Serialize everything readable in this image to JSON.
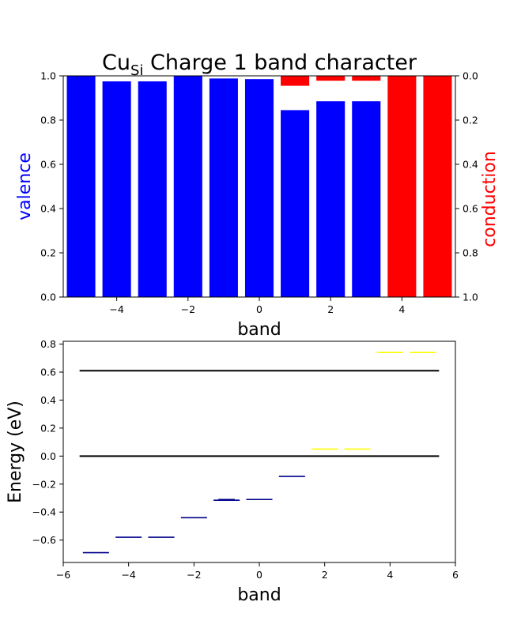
{
  "chart_data": [
    {
      "type": "bar",
      "title": "Cu",
      "title_subscript": "Si",
      "title_rest": " Charge 1 band character",
      "xlabel": "band",
      "ylabel_left": "valence",
      "ylabel_right": "conduction",
      "ylabel_left_color": "#0000ff",
      "ylabel_right_color": "#ff0000",
      "xlim": [
        -5.5,
        5.5
      ],
      "ylim_left": [
        0,
        1
      ],
      "ylim_right": [
        1,
        0
      ],
      "x_ticks": [
        "-4",
        "-2",
        "0",
        "2",
        "4"
      ],
      "y_ticks_left": [
        "0.0",
        "0.2",
        "0.4",
        "0.6",
        "0.8",
        "1.0"
      ],
      "y_ticks_right": [
        "0.0",
        "0.2",
        "0.4",
        "0.6",
        "0.8",
        "1.0"
      ],
      "x": [
        -5,
        -4,
        -3,
        -2,
        -1,
        0,
        1,
        2,
        3,
        4,
        5
      ],
      "series": [
        {
          "axis": "left",
          "color": "#0000ff",
          "values": [
            1.0,
            0.975,
            0.975,
            1.0,
            0.988,
            0.985,
            0.845,
            0.885,
            0.885,
            0.0,
            0.0
          ]
        },
        {
          "axis": "right",
          "color": "#ff0000",
          "values": [
            0.0,
            0.0,
            0.0,
            0.0,
            0.0,
            0.0,
            0.045,
            0.022,
            0.022,
            1.0,
            1.0
          ]
        }
      ]
    },
    {
      "type": "line",
      "xlabel": "band",
      "ylabel": "Energy (eV)",
      "xlim": [
        -6,
        6
      ],
      "ylim": [
        -0.76,
        0.82
      ],
      "x_ticks": [
        "-6",
        "-4",
        "-2",
        "0",
        "2",
        "4",
        "6"
      ],
      "y_ticks": [
        "-0.6",
        "-0.4",
        "-0.2",
        "0.0",
        "0.2",
        "0.4",
        "0.6",
        "0.8"
      ],
      "reference_lines": [
        {
          "y": 0.0,
          "x_range": [
            -5.5,
            5.5
          ],
          "color": "#000000"
        },
        {
          "y": 0.61,
          "x_range": [
            -5.5,
            5.5
          ],
          "color": "#000000"
        }
      ],
      "levels": [
        {
          "x": -5,
          "y": -0.69,
          "color": "#00008b"
        },
        {
          "x": -4,
          "y": -0.58,
          "color": "#00008b"
        },
        {
          "x": -3,
          "y": -0.58,
          "color": "#00008b"
        },
        {
          "x": -2,
          "y": -0.44,
          "color": "#00008b"
        },
        {
          "x": -1,
          "y": -0.315,
          "color": "#00008b"
        },
        {
          "x": -1,
          "y": -0.31,
          "color": "#00008b",
          "width": 0.5
        },
        {
          "x": 0,
          "y": -0.31,
          "color": "#00008b"
        },
        {
          "x": 1,
          "y": -0.145,
          "color": "#00008b"
        },
        {
          "x": 2,
          "y": 0.05,
          "color": "#ffff00"
        },
        {
          "x": 3,
          "y": 0.05,
          "color": "#ffff00"
        },
        {
          "x": 4,
          "y": 0.74,
          "color": "#ffff00"
        },
        {
          "x": 5,
          "y": 0.74,
          "color": "#ffff00"
        }
      ]
    }
  ]
}
